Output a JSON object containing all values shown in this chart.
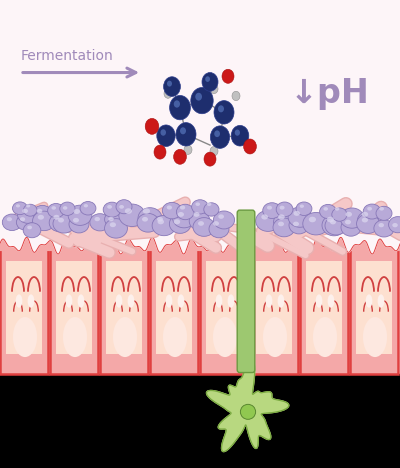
{
  "bg_color": "#fdf5f8",
  "bottom_bg": "#111111",
  "fermentation_text": "Fermentation",
  "arrow_color": "#a08aba",
  "ph_text": "↓pH",
  "text_color": "#a08aba",
  "cell_color": "#f4a8a8",
  "cell_border": "#e04040",
  "cell_light": "#fde0d0",
  "cell_gradient_top": "#f8c0b0",
  "mucus_color_fill": "#f5c8c8",
  "mucus_color_edge": "#e8b0b0",
  "bacteria_color": "#b8aad8",
  "bacteria_dark": "#8878b8",
  "green_stem_color": "#9dc870",
  "green_stem_dark": "#6a9a40",
  "green_cell_color": "#b8d880",
  "green_cell_dark": "#7aaa40",
  "molecule_blue": "#1e2e6e",
  "molecule_blue2": "#2a3a8a",
  "molecule_red": "#cc1818",
  "molecule_grey": "#c0c0c0",
  "villi_color": "#d04040",
  "villi_inner": "#fae0d8"
}
